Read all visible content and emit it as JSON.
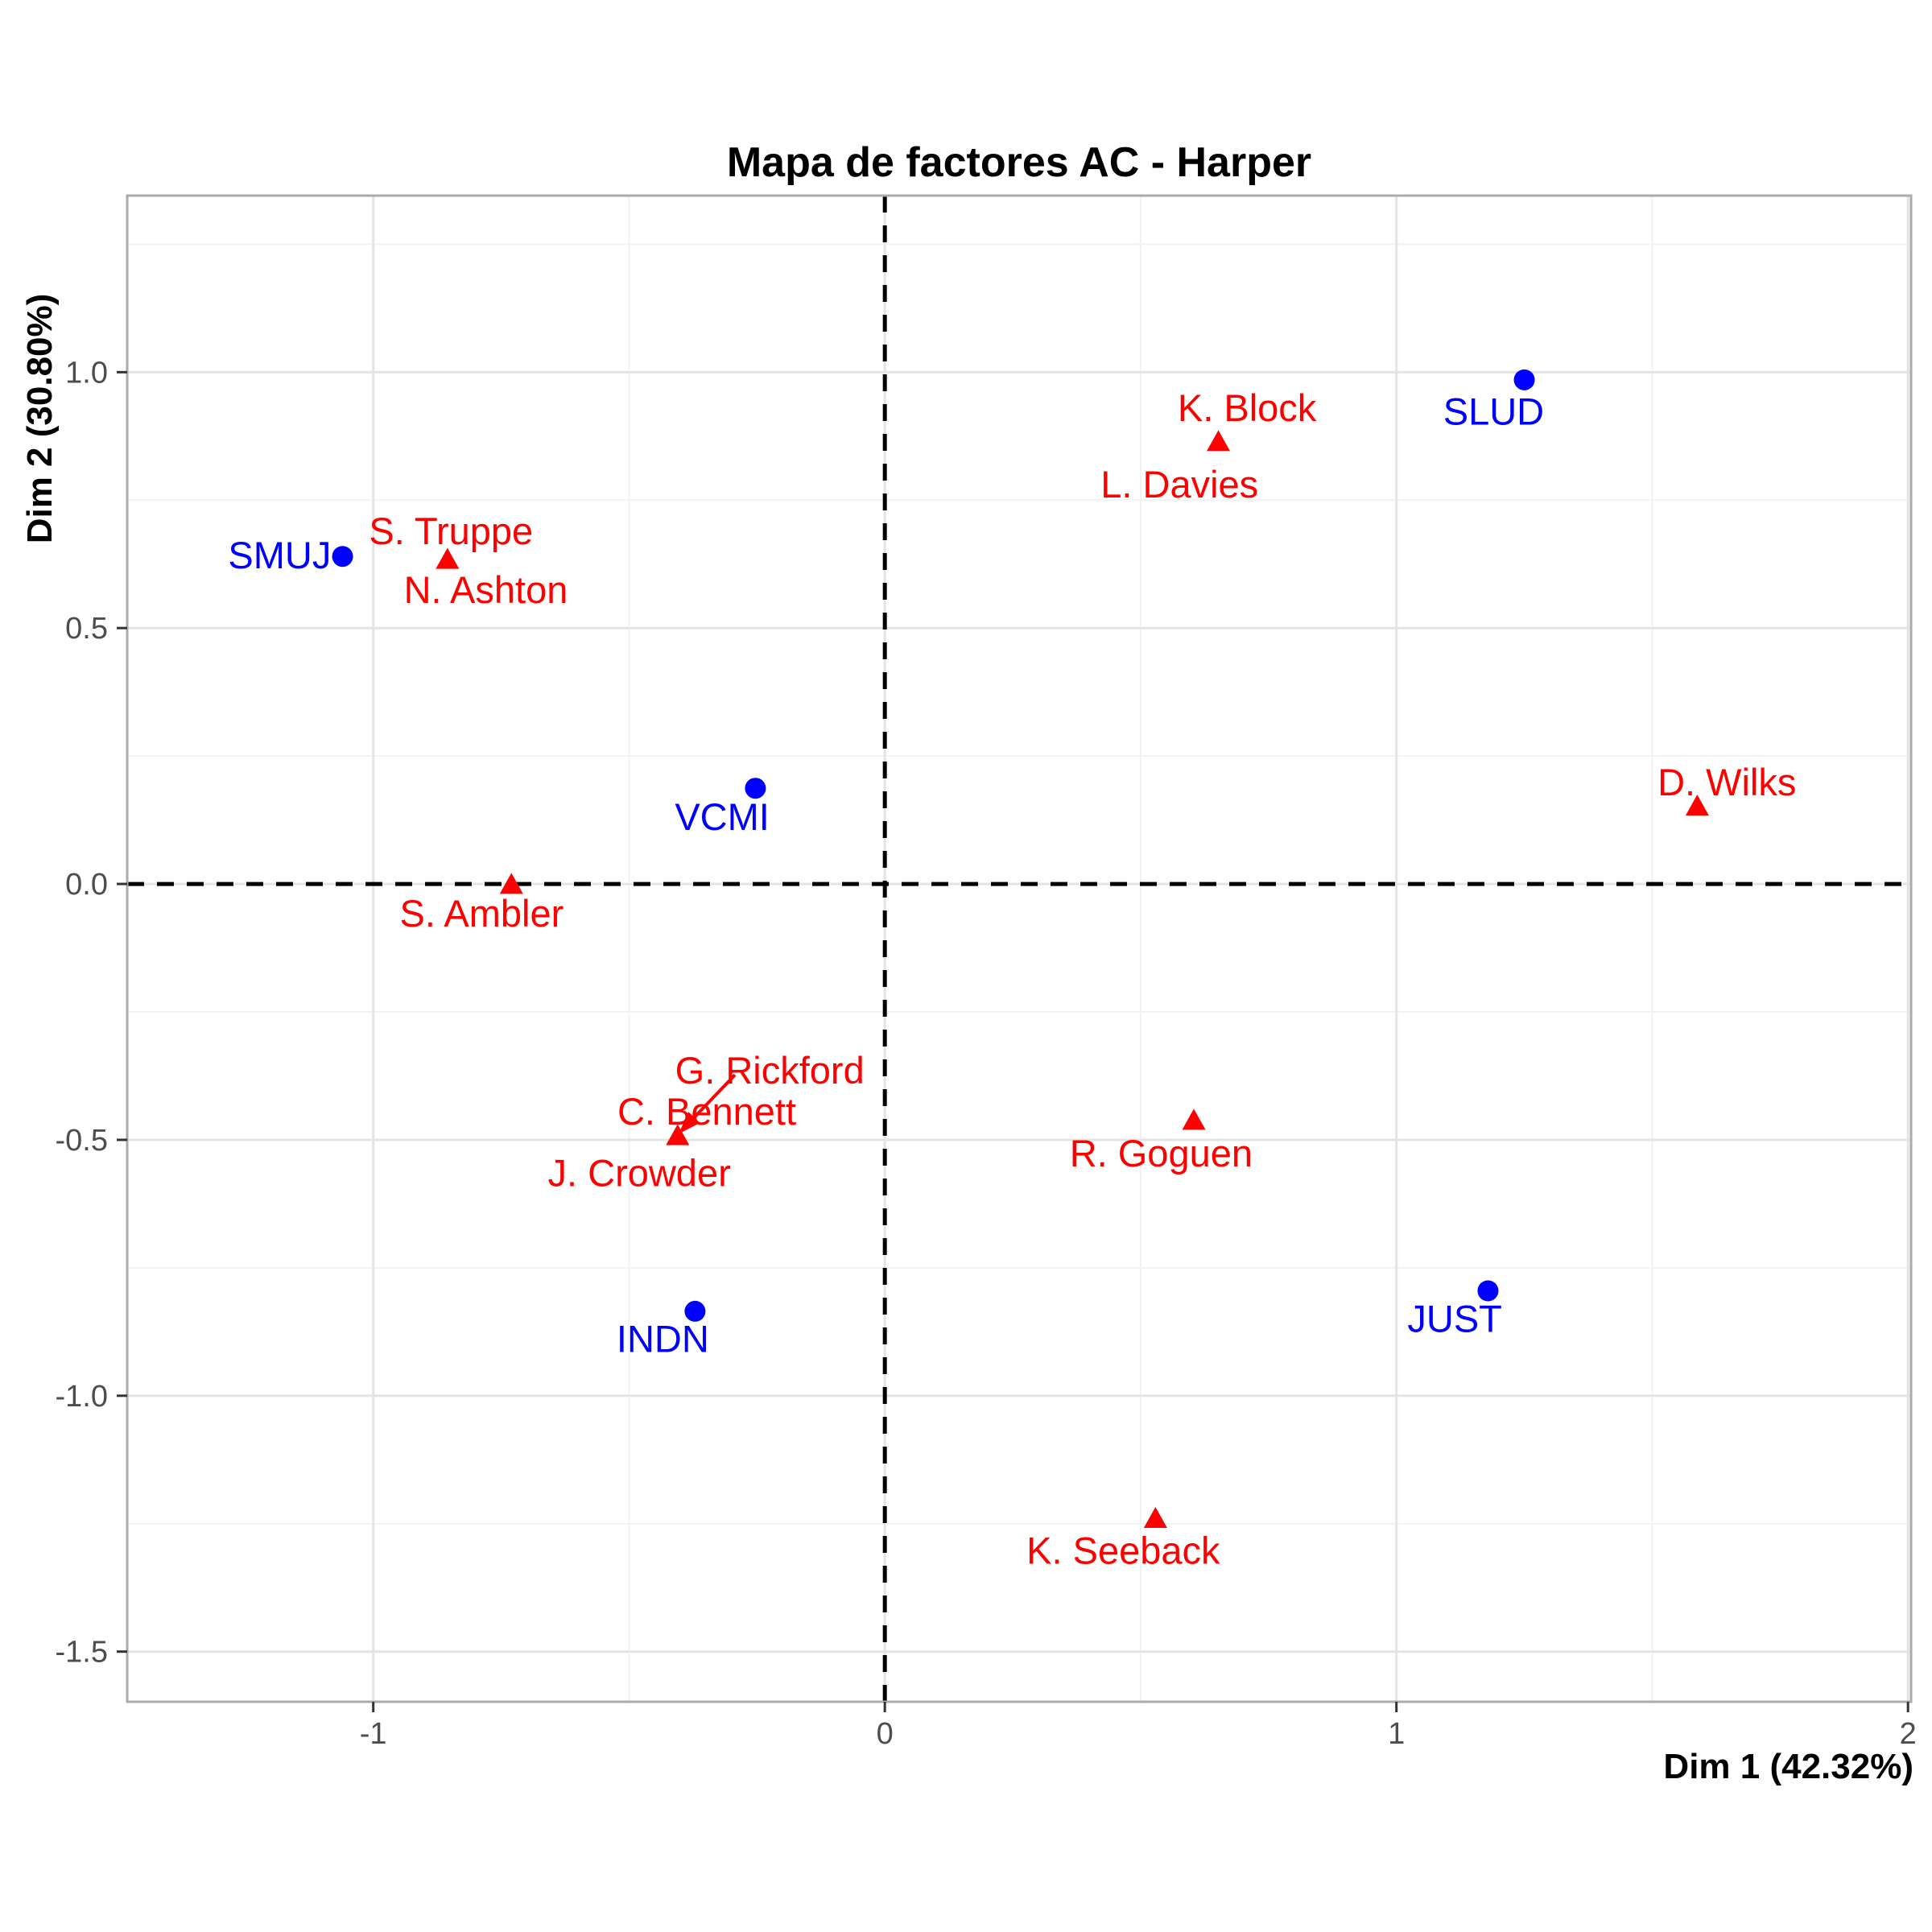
{
  "chart_data": {
    "type": "scatter",
    "title": "Mapa de factores AC - Harper",
    "xlabel": "Dim 1 (42.32%)",
    "ylabel": "Dim 2 (30.80%)",
    "xlim": [
      -1.481,
      2.006
    ],
    "ylim": [
      -1.598,
      1.345
    ],
    "grid": true,
    "legend_position": "none",
    "x_major_ticks": [
      {
        "value": -1,
        "label": "-1"
      },
      {
        "value": 0,
        "label": "0"
      },
      {
        "value": 1,
        "label": "1"
      },
      {
        "value": 2,
        "label": "2"
      }
    ],
    "y_major_ticks": [
      {
        "value": -1.5,
        "label": "-1.5"
      },
      {
        "value": -1.0,
        "label": "-1.0"
      },
      {
        "value": -0.5,
        "label": "-0.5"
      },
      {
        "value": 0.0,
        "label": "0.0"
      },
      {
        "value": 0.5,
        "label": "0.5"
      },
      {
        "value": 1.0,
        "label": "1.0"
      }
    ],
    "x_minor_gridlines": [
      -0.5,
      0.5,
      1.5
    ],
    "y_minor_gridlines": [
      -1.25,
      -0.75,
      -0.25,
      0.25,
      0.75,
      1.25
    ],
    "reference_lines": {
      "vertical_x": 0,
      "horizontal_y": 0,
      "style": "dashed",
      "color": "#000000"
    },
    "series": [
      {
        "name": "columns",
        "marker": "circle",
        "color": "#0000FF",
        "points": [
          {
            "label": "SMUJ",
            "x": -1.06,
            "y": 0.64,
            "label_x": -1.183,
            "label_y": 0.642,
            "draw_marker": true
          },
          {
            "label": "VCMI",
            "x": -0.253,
            "y": 0.187,
            "label_x": -0.318,
            "label_y": 0.131,
            "draw_marker": true
          },
          {
            "label": "INDN",
            "x": -0.371,
            "y": -0.835,
            "label_x": -0.434,
            "label_y": -0.889,
            "draw_marker": true
          },
          {
            "label": "SLUD",
            "x": 1.25,
            "y": 0.985,
            "label_x": 1.19,
            "label_y": 0.923,
            "draw_marker": true
          },
          {
            "label": "JUST",
            "x": 1.179,
            "y": -0.795,
            "label_x": 1.114,
            "label_y": -0.85,
            "draw_marker": true
          }
        ]
      },
      {
        "name": "rows",
        "marker": "triangle",
        "color": "#FF0000",
        "points": [
          {
            "label": "S. Truppe",
            "x": -0.855,
            "y": 0.633,
            "label_x": -0.848,
            "label_y": 0.689,
            "draw_marker": true
          },
          {
            "label": "N. Ashton",
            "x": -0.855,
            "y": 0.633,
            "label_x": -0.78,
            "label_y": 0.574,
            "draw_marker": false
          },
          {
            "label": "K. Block",
            "x": 0.652,
            "y": 0.863,
            "label_x": 0.708,
            "label_y": 0.93,
            "draw_marker": true
          },
          {
            "label": "L. Davies",
            "x": 0.652,
            "y": 0.863,
            "label_x": 0.576,
            "label_y": 0.78,
            "draw_marker": false
          },
          {
            "label": "S. Ambler",
            "x": -0.73,
            "y": -0.002,
            "label_x": -0.788,
            "label_y": -0.058,
            "draw_marker": true
          },
          {
            "label": "G. Rickford",
            "x": -0.405,
            "y": -0.493,
            "label_x": -0.225,
            "label_y": -0.365,
            "draw_marker": true
          },
          {
            "label": "C. Bennett",
            "x": -0.405,
            "y": -0.493,
            "label_x": -0.348,
            "label_y": -0.445,
            "draw_marker": false
          },
          {
            "label": "J. Crowder",
            "x": -0.405,
            "y": -0.493,
            "label_x": -0.48,
            "label_y": -0.565,
            "draw_marker": false
          },
          {
            "label": "R. Goguen",
            "x": 0.604,
            "y": -0.463,
            "label_x": 0.54,
            "label_y": -0.527,
            "draw_marker": true
          },
          {
            "label": "K. Seeback",
            "x": 0.529,
            "y": -1.241,
            "label_x": 0.466,
            "label_y": -1.303,
            "draw_marker": true
          },
          {
            "label": "D. Wilks",
            "x": 1.588,
            "y": 0.151,
            "label_x": 1.646,
            "label_y": 0.198,
            "draw_marker": true
          }
        ]
      }
    ],
    "leader_lines": [
      {
        "x1": -0.293,
        "y1": -0.373,
        "x2": -0.403,
        "y2": -0.488,
        "color": "#FF0000",
        "arrow": true
      }
    ],
    "colors": {
      "rows": "#FF0000",
      "columns": "#0000FF",
      "reference_line": "#000000",
      "tick_label": "#4D4D4D",
      "tick_mark": "#333333",
      "grid_major": "#E4E4E4",
      "grid_minor": "#F2F2F2",
      "panel_border": "#ABABAB",
      "background": "#FFFFFF"
    }
  }
}
